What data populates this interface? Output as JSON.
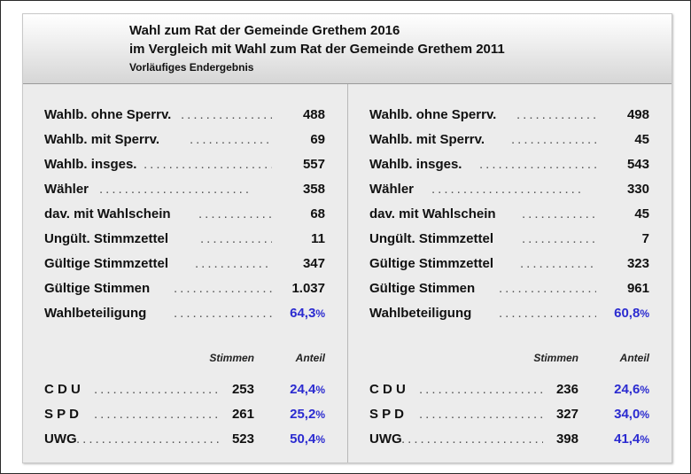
{
  "header": {
    "title1": "Wahl zum Rat der Gemeinde Grethem 2016",
    "title2": "im Vergleich mit Wahl zum Rat der Gemeinde Grethem 2011",
    "subtitle": "Vorläufiges Endergebnis"
  },
  "left": {
    "stats": [
      {
        "label": "Wahlb. ohne Sperrv.",
        "value": "488"
      },
      {
        "label": "Wahlb. mit Sperrv.",
        "value": "69"
      },
      {
        "label": "Wahlb. insges.",
        "value": "557"
      },
      {
        "label": "Wähler",
        "value": "358"
      },
      {
        "label": "dav. mit Wahlschein",
        "value": "68"
      },
      {
        "label": "Ungült. Stimmzettel",
        "value": "11"
      },
      {
        "label": "Gültige Stimmzettel",
        "value": "347"
      },
      {
        "label": "Gültige Stimmen",
        "value": "1.037"
      },
      {
        "label": "Wahlbeteiligung",
        "value": "64,3",
        "unit": "%"
      }
    ],
    "col_stimmen": "Stimmen",
    "col_anteil": "Anteil",
    "parties": [
      {
        "name": "C D U",
        "votes": "253",
        "share": "24,4",
        "unit": "%"
      },
      {
        "name": "S P D",
        "votes": "261",
        "share": "25,2",
        "unit": "%"
      },
      {
        "name": "UWG",
        "votes": "523",
        "share": "50,4",
        "unit": "%"
      }
    ]
  },
  "right": {
    "stats": [
      {
        "label": "Wahlb. ohne Sperrv.",
        "value": "498"
      },
      {
        "label": "Wahlb. mit Sperrv.",
        "value": "45"
      },
      {
        "label": "Wahlb. insges.",
        "value": "543"
      },
      {
        "label": "Wähler",
        "value": "330"
      },
      {
        "label": "dav. mit Wahlschein",
        "value": "45"
      },
      {
        "label": "Ungült. Stimmzettel",
        "value": "7"
      },
      {
        "label": "Gültige Stimmzettel",
        "value": "323"
      },
      {
        "label": "Gültige Stimmen",
        "value": "961"
      },
      {
        "label": "Wahlbeteiligung",
        "value": "60,8",
        "unit": "%"
      }
    ],
    "col_stimmen": "Stimmen",
    "col_anteil": "Anteil",
    "parties": [
      {
        "name": "C D U",
        "votes": "236",
        "share": "24,6",
        "unit": "%"
      },
      {
        "name": "S P D",
        "votes": "327",
        "share": "34,0",
        "unit": "%"
      },
      {
        "name": "UWG",
        "votes": "398",
        "share": "41,4",
        "unit": "%"
      }
    ]
  },
  "colors": {
    "accent": "#2b2bd0",
    "panel": "#ececec"
  }
}
